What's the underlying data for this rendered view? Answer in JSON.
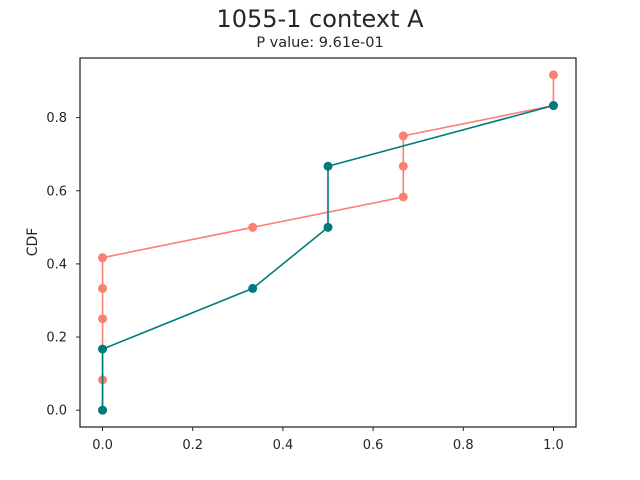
{
  "chart_data": {
    "type": "line",
    "title": "1055-1 context A",
    "subtitle": "P value: 9.61e-01",
    "xlabel": "",
    "ylabel": "CDF",
    "xlim": [
      -0.05,
      1.05
    ],
    "ylim": [
      -0.046,
      0.963
    ],
    "xticks": [
      0.0,
      0.2,
      0.4,
      0.6,
      0.8,
      1.0
    ],
    "yticks": [
      0.0,
      0.2,
      0.4,
      0.6,
      0.8
    ],
    "grid": false,
    "series": [
      {
        "color": "#fa8072",
        "x": [
          0.0,
          0.0,
          0.0,
          0.0,
          0.0,
          0.333,
          0.667,
          0.667,
          0.667,
          1.0,
          1.0
        ],
        "y": [
          0.0,
          0.083,
          0.25,
          0.333,
          0.417,
          0.5,
          0.583,
          0.667,
          0.75,
          0.833,
          0.917
        ]
      },
      {
        "color": "#007b7b",
        "x": [
          0.0,
          0.0,
          0.333,
          0.5,
          0.5,
          1.0
        ],
        "y": [
          0.0,
          0.167,
          0.333,
          0.5,
          0.667,
          0.833
        ]
      }
    ]
  }
}
